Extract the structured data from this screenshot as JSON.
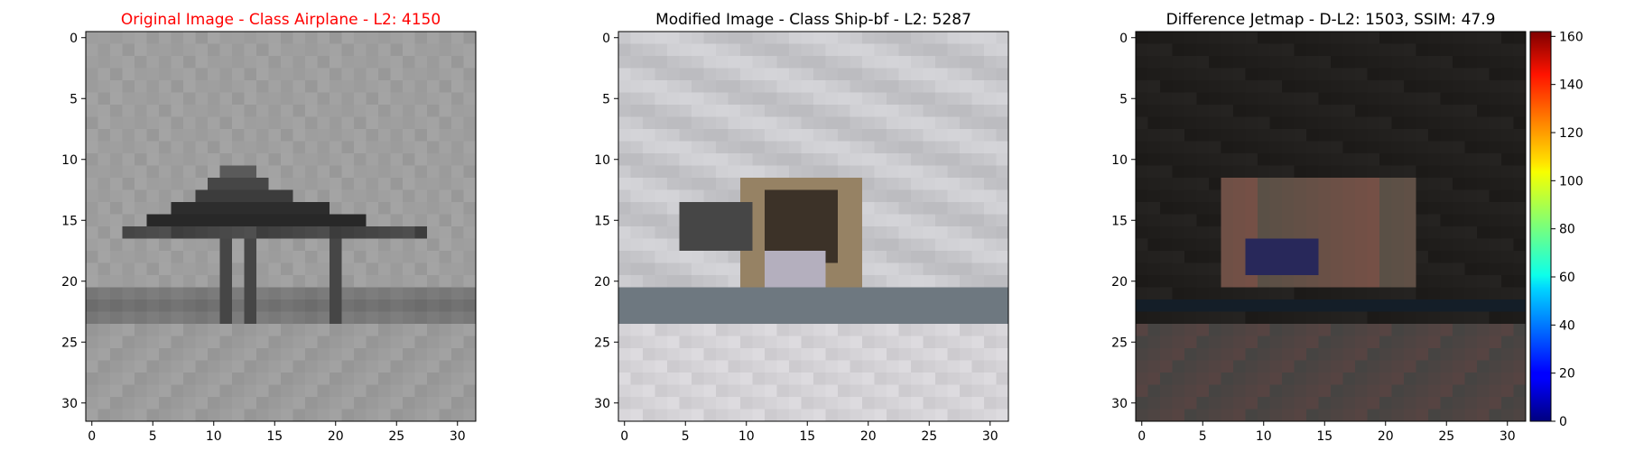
{
  "chart_data": [
    {
      "type": "heatmap",
      "title": "Original Image - Class Airplane - L2: 4150",
      "title_color": "#ff0000",
      "grid": false,
      "x_ticks": [
        0,
        5,
        10,
        15,
        20,
        25,
        30
      ],
      "y_ticks": [
        0,
        5,
        10,
        15,
        20,
        25,
        30
      ],
      "xlim": [
        -0.5,
        31.5
      ],
      "ylim": [
        31.5,
        -0.5
      ],
      "image_size": [
        32,
        32
      ]
    },
    {
      "type": "heatmap",
      "title": "Modified Image - Class Ship-bf - L2: 5287",
      "title_color": "#000000",
      "grid": false,
      "x_ticks": [
        0,
        5,
        10,
        15,
        20,
        25,
        30
      ],
      "y_ticks": [
        0,
        5,
        10,
        15,
        20,
        25,
        30
      ],
      "xlim": [
        -0.5,
        31.5
      ],
      "ylim": [
        31.5,
        -0.5
      ],
      "image_size": [
        32,
        32
      ]
    },
    {
      "type": "heatmap",
      "title": "Difference Jetmap - D-L2: 1503, SSIM: 47.9",
      "title_color": "#000000",
      "grid": false,
      "x_ticks": [
        0,
        5,
        10,
        15,
        20,
        25,
        30
      ],
      "y_ticks": [
        0,
        5,
        10,
        15,
        20,
        25,
        30
      ],
      "xlim": [
        -0.5,
        31.5
      ],
      "ylim": [
        31.5,
        -0.5
      ],
      "image_size": [
        32,
        32
      ],
      "colorbar": {
        "colormap": "jet",
        "ticks": [
          0,
          20,
          40,
          60,
          80,
          100,
          120,
          140,
          160
        ],
        "range": [
          0,
          162
        ]
      }
    }
  ]
}
